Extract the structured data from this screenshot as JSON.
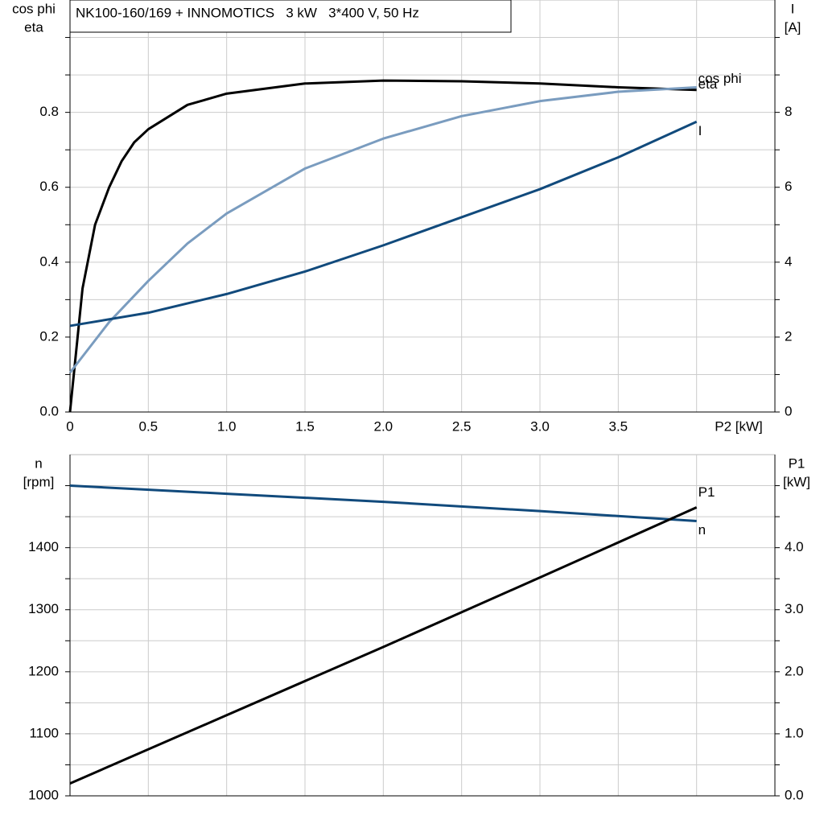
{
  "chart_data": [
    {
      "type": "line",
      "title": "NK100-160/169 + INNOMOTICS   3 kW   3*400 V, 50 Hz",
      "ylabel": [
        "cos phi",
        "eta"
      ],
      "y2label": [
        "I",
        "[A]"
      ],
      "xlabel": "P2 [kW]",
      "xlim": [
        0,
        4.5
      ],
      "xticks": [
        0,
        {
          "value": 0.5,
          "label": "0.5"
        },
        {
          "value": 1,
          "label": "1.0"
        },
        {
          "value": 1.5,
          "label": "1.5"
        },
        {
          "value": 2,
          "label": "2.0"
        },
        {
          "value": 2.5,
          "label": "2.5"
        },
        {
          "value": 3,
          "label": "3.0"
        },
        {
          "value": 3.5,
          "label": "3.5"
        },
        {
          "value": 4,
          "label": null
        }
      ],
      "xtick_labels": true,
      "ylim": [
        0,
        1.1
      ],
      "yticks": [
        {
          "value": 0,
          "label": "0.0"
        },
        {
          "value": 0.1,
          "label": null
        },
        {
          "value": 0.2,
          "label": "0.2"
        },
        {
          "value": 0.3,
          "label": null
        },
        {
          "value": 0.4,
          "label": "0.4"
        },
        {
          "value": 0.5,
          "label": null
        },
        {
          "value": 0.6,
          "label": "0.6"
        },
        {
          "value": 0.7,
          "label": null
        },
        {
          "value": 0.8,
          "label": "0.8"
        },
        {
          "value": 0.9,
          "label": null
        },
        {
          "value": 1,
          "label": null
        }
      ],
      "y2lim": [
        0,
        11
      ],
      "y2ticks": [
        0,
        {
          "value": 1,
          "label": null
        },
        2,
        {
          "value": 3,
          "label": null
        },
        4,
        {
          "value": 5,
          "label": null
        },
        6,
        {
          "value": 7,
          "label": null
        },
        8,
        {
          "value": 9,
          "label": null
        },
        {
          "value": 10,
          "label": null
        }
      ],
      "grid": true,
      "series": [
        {
          "name": "eta",
          "color": "#000000",
          "x": [
            0,
            0.08,
            0.16,
            0.25,
            0.33,
            0.41,
            0.5,
            0.75,
            1.0,
            1.5,
            2.0,
            2.5,
            3.0,
            3.5,
            4.0
          ],
          "values": [
            0,
            0.33,
            0.5,
            0.6,
            0.67,
            0.72,
            0.755,
            0.82,
            0.85,
            0.877,
            0.885,
            0.883,
            0.877,
            0.867,
            0.86
          ]
        },
        {
          "name": "cos phi",
          "color": "#7a9cbf",
          "x": [
            0,
            0.25,
            0.5,
            0.75,
            1.0,
            1.5,
            2.0,
            2.5,
            3.0,
            3.5,
            4.0
          ],
          "values": [
            0.105,
            0.24,
            0.35,
            0.45,
            0.53,
            0.65,
            0.73,
            0.79,
            0.83,
            0.855,
            0.867
          ]
        },
        {
          "name": "I",
          "color": "#114a7c",
          "axis": "y2",
          "x": [
            0,
            0.5,
            1.0,
            1.5,
            2.0,
            2.5,
            3.0,
            3.5,
            4.0
          ],
          "values": [
            2.3,
            2.65,
            3.15,
            3.75,
            4.45,
            5.2,
            5.95,
            6.8,
            7.75
          ]
        }
      ]
    },
    {
      "type": "line",
      "ylabel": [
        "n",
        "[rpm]"
      ],
      "y2label": [
        "P1",
        "[kW]"
      ],
      "xlim": [
        0,
        4.5
      ],
      "xticks": [
        0,
        0.5,
        1,
        1.5,
        2,
        2.5,
        3,
        3.5,
        4
      ],
      "xtick_labels": false,
      "ylim": [
        1000,
        1550
      ],
      "yticks": [
        1000,
        {
          "value": 1050,
          "label": null
        },
        1100,
        {
          "value": 1150,
          "label": null
        },
        1200,
        {
          "value": 1250,
          "label": null
        },
        1300,
        {
          "value": 1350,
          "label": null
        },
        1400,
        {
          "value": 1450,
          "label": null
        },
        {
          "value": 1500,
          "label": null
        }
      ],
      "y2lim": [
        0,
        5.5
      ],
      "y2ticks": [
        {
          "value": 0,
          "label": "0.0"
        },
        {
          "value": 0.5,
          "label": null
        },
        {
          "value": 1,
          "label": "1.0"
        },
        {
          "value": 1.5,
          "label": null
        },
        {
          "value": 2,
          "label": "2.0"
        },
        {
          "value": 2.5,
          "label": null
        },
        {
          "value": 3,
          "label": "3.0"
        },
        {
          "value": 3.5,
          "label": null
        },
        {
          "value": 4,
          "label": "4.0"
        },
        {
          "value": 4.5,
          "label": null
        },
        {
          "value": 5,
          "label": null
        }
      ],
      "grid": true,
      "series": [
        {
          "name": "n",
          "color": "#114a7c",
          "x": [
            0,
            1.0,
            2.0,
            3.0,
            4.0
          ],
          "values": [
            1500,
            1487,
            1474,
            1459,
            1443
          ]
        },
        {
          "name": "P1",
          "color": "#000000",
          "axis": "y2",
          "x": [
            0,
            1.0,
            2.0,
            3.0,
            4.0
          ],
          "values": [
            0.2,
            1.3,
            2.4,
            3.52,
            4.65
          ]
        }
      ]
    }
  ]
}
